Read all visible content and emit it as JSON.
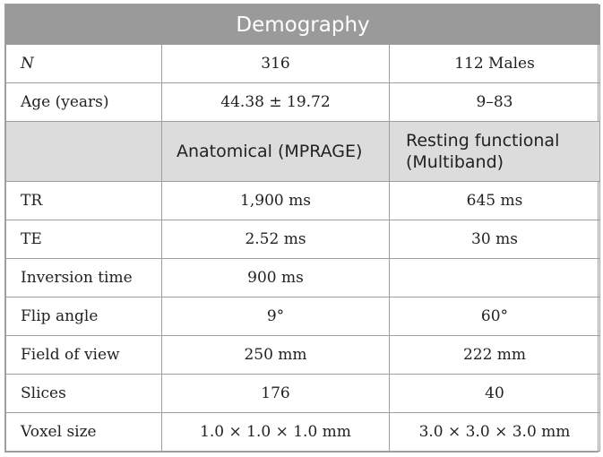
{
  "table": {
    "title": "Demography",
    "rows_top": [
      {
        "label": "N",
        "col2": "316",
        "col3": "112 Males"
      },
      {
        "label": "Age (years)",
        "col2": "44.38 ± 19.72",
        "col3": "9–83"
      }
    ],
    "headers": {
      "col2": "Anatomical (MPRAGE)",
      "col3_line1": "Resting functional",
      "col3_line2": "(Multiband)"
    },
    "rows_bottom": [
      {
        "label": "TR",
        "col2": "1,900 ms",
        "col3": "645 ms"
      },
      {
        "label": "TE",
        "col2": "2.52 ms",
        "col3": "30 ms"
      },
      {
        "label": "Inversion time",
        "col2": "900 ms",
        "col3": ""
      },
      {
        "label": "Flip angle",
        "col2": "9°",
        "col3": "60°"
      },
      {
        "label": "Field of view",
        "col2": "250 mm",
        "col3": "222 mm"
      },
      {
        "label": "Slices",
        "col2": "176",
        "col3": "40"
      },
      {
        "label": "Voxel size",
        "col2": "1.0 × 1.0 × 1.0 mm",
        "col3": "3.0 × 3.0 × 3.0 mm"
      }
    ]
  }
}
